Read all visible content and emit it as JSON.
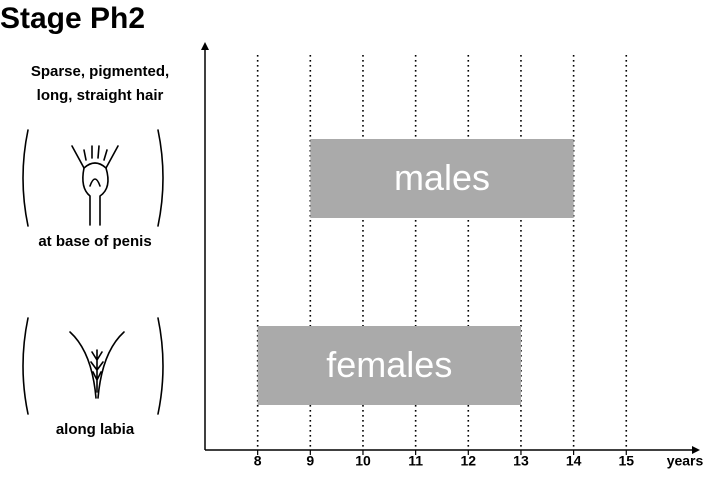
{
  "chart_data": {
    "type": "range-bar",
    "title": "Stage Ph2",
    "subtitle": [
      "Sparse, pigmented,",
      "long, straight hair"
    ],
    "annotations": [
      "at base of penis",
      "along labia"
    ],
    "xlabel": "years",
    "categories": [
      "males",
      "females"
    ],
    "starts": [
      9,
      8
    ],
    "ends": [
      14,
      13
    ],
    "color": "#aaaaaa",
    "xlim": [
      7,
      16.4
    ],
    "xticks": [
      8,
      9,
      10,
      11,
      12,
      13,
      14,
      15
    ],
    "grid": true
  }
}
